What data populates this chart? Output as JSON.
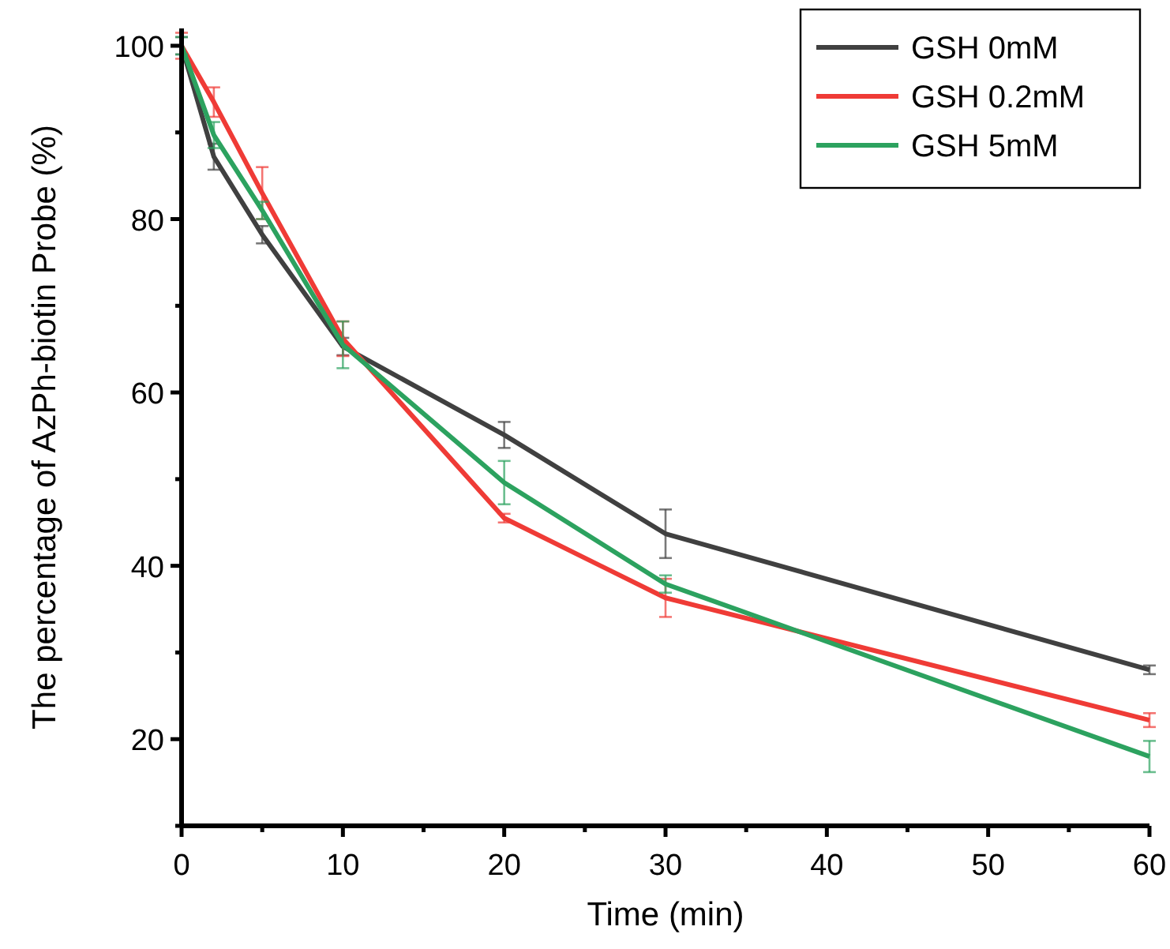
{
  "chart_data": {
    "type": "line",
    "xlabel": "Time (min)",
    "ylabel": "The percentage of AzPh-biotin Probe (%)",
    "x": [
      0,
      2,
      5,
      10,
      20,
      30,
      60
    ],
    "xlim": [
      0,
      60
    ],
    "xticks": [
      0,
      {
        "value": 5,
        "label": null
      },
      10,
      {
        "value": 15,
        "label": null
      },
      20,
      {
        "value": 25,
        "label": null
      },
      30,
      {
        "value": 35,
        "label": null
      },
      40,
      {
        "value": 45,
        "label": null
      },
      50,
      {
        "value": 55,
        "label": null
      },
      60
    ],
    "ylim": [
      10,
      102
    ],
    "yticks": [
      {
        "value": 10,
        "label": null
      },
      20,
      {
        "value": 30,
        "label": null
      },
      40,
      {
        "value": 50,
        "label": null
      },
      60,
      {
        "value": 70,
        "label": null
      },
      80,
      {
        "value": 90,
        "label": null
      },
      100
    ],
    "series": [
      {
        "name": "GSH 0mM",
        "color": "#404040",
        "values": [
          100,
          87.2,
          78.2,
          65.3,
          55.1,
          43.7,
          28.0
        ],
        "errors": [
          1,
          1.5,
          1,
          1,
          1.5,
          2.8,
          0.5
        ]
      },
      {
        "name": "GSH 0.2mM",
        "color": "#ef3b36",
        "values": [
          100,
          93.5,
          83,
          66.2,
          45.5,
          36.3,
          22.2
        ],
        "errors": [
          1.5,
          1.7,
          3,
          2,
          0.5,
          2.2,
          0.8
        ]
      },
      {
        "name": "GSH 5mM",
        "color": "#2ca25f",
        "values": [
          100,
          89.7,
          81,
          65.5,
          49.6,
          37.9,
          18.0
        ],
        "errors": [
          1,
          1.5,
          1,
          2.7,
          2.5,
          1,
          1.8
        ]
      }
    ],
    "legend": "top right",
    "grid": false,
    "marker": "none",
    "line_style": "solid"
  }
}
